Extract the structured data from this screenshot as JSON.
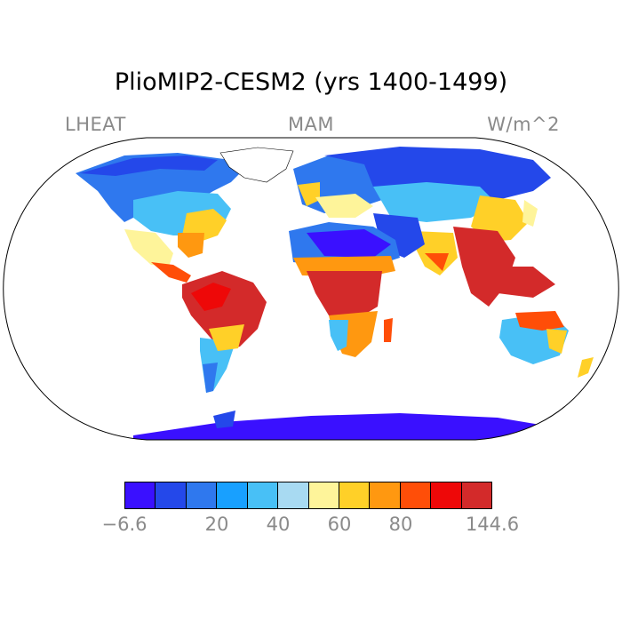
{
  "title": "PlioMIP2-CESM2 (yrs 1400-1499)",
  "variable": "LHEAT",
  "season": "MAM",
  "units": "W/m^2",
  "colorbar": {
    "colors": [
      "#3a10ff",
      "#2448ea",
      "#2f78ee",
      "#18a0ff",
      "#48c0f6",
      "#a8daf2",
      "#fef49a",
      "#ffd028",
      "#ff9810",
      "#ff4e08",
      "#ee0808",
      "#d32a2a"
    ],
    "tick_labels": [
      "−6.6",
      "20",
      "40",
      "60",
      "80",
      "144.6"
    ]
  },
  "map": {
    "projection": "robinson",
    "ocean_color": "#ffffff",
    "outline_color": "#000000"
  }
}
